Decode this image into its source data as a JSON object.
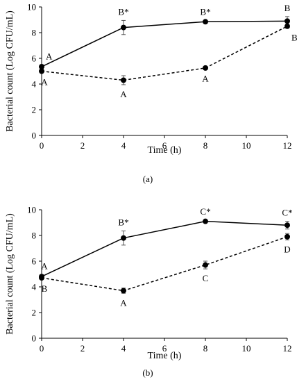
{
  "chart_data": [
    {
      "type": "line",
      "panel_label": "(a)",
      "xlabel": "Time (h)",
      "ylabel": "Bacterial count (Log CFU/mL)",
      "xlim": [
        0,
        12
      ],
      "ylim": [
        0,
        10
      ],
      "xticks": [
        0,
        2,
        4,
        6,
        8,
        10,
        12
      ],
      "yticks": [
        0,
        2,
        4,
        6,
        8,
        10
      ],
      "grid": false,
      "x": [
        0,
        4,
        8,
        12
      ],
      "series": [
        {
          "style": "solid",
          "values": [
            5.35,
            8.4,
            8.85,
            8.9
          ],
          "errors": [
            0.15,
            0.55,
            0.1,
            0.35
          ],
          "labels": [
            "A",
            "B*",
            "B*",
            "B"
          ],
          "label_pos": [
            "above-right",
            "above",
            "above",
            "above"
          ]
        },
        {
          "style": "dashed",
          "values": [
            5.0,
            4.3,
            5.25,
            8.5
          ],
          "errors": [
            0.1,
            0.35,
            0.1,
            0.15
          ],
          "labels": [
            "A",
            "A",
            "A",
            "B"
          ],
          "label_pos": [
            "below",
            "below",
            "below",
            "below-right"
          ]
        }
      ]
    },
    {
      "type": "line",
      "panel_label": "(b)",
      "xlabel": "Time (h)",
      "ylabel": "Bacterial count (Log CFU/mL)",
      "xlim": [
        0,
        12
      ],
      "ylim": [
        0,
        10
      ],
      "xticks": [
        0,
        2,
        4,
        6,
        8,
        10,
        12
      ],
      "yticks": [
        0,
        2,
        4,
        6,
        8,
        10
      ],
      "grid": false,
      "x": [
        0,
        4,
        8,
        12
      ],
      "series": [
        {
          "style": "solid",
          "values": [
            4.8,
            7.8,
            9.1,
            8.8
          ],
          "errors": [
            0.15,
            0.55,
            0.1,
            0.3
          ],
          "labels": [
            "A",
            "B*",
            "C*",
            "C*"
          ],
          "label_pos": [
            "above",
            "above",
            "above",
            "above"
          ]
        },
        {
          "style": "dashed",
          "values": [
            4.7,
            3.7,
            5.7,
            7.9
          ],
          "errors": [
            0.1,
            0.2,
            0.3,
            0.25
          ],
          "labels": [
            "B",
            "A",
            "C",
            "D"
          ],
          "label_pos": [
            "below",
            "below",
            "below",
            "below"
          ]
        }
      ]
    }
  ]
}
